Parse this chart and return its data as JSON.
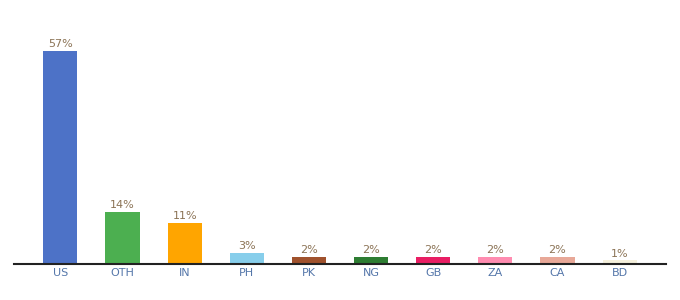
{
  "categories": [
    "US",
    "OTH",
    "IN",
    "PH",
    "PK",
    "NG",
    "GB",
    "ZA",
    "CA",
    "BD"
  ],
  "values": [
    57,
    14,
    11,
    3,
    2,
    2,
    2,
    2,
    2,
    1
  ],
  "bar_colors": [
    "#4D72C7",
    "#4CAF50",
    "#FFA500",
    "#87CEEB",
    "#A0522D",
    "#2E7D32",
    "#E91E63",
    "#FF8CB0",
    "#E8A898",
    "#F5F0DC"
  ],
  "ylim": [
    0,
    65
  ],
  "label_color": "#8B7355",
  "label_fontsize": 8,
  "xlabel_fontsize": 8,
  "background_color": "#ffffff",
  "bar_width": 0.55
}
